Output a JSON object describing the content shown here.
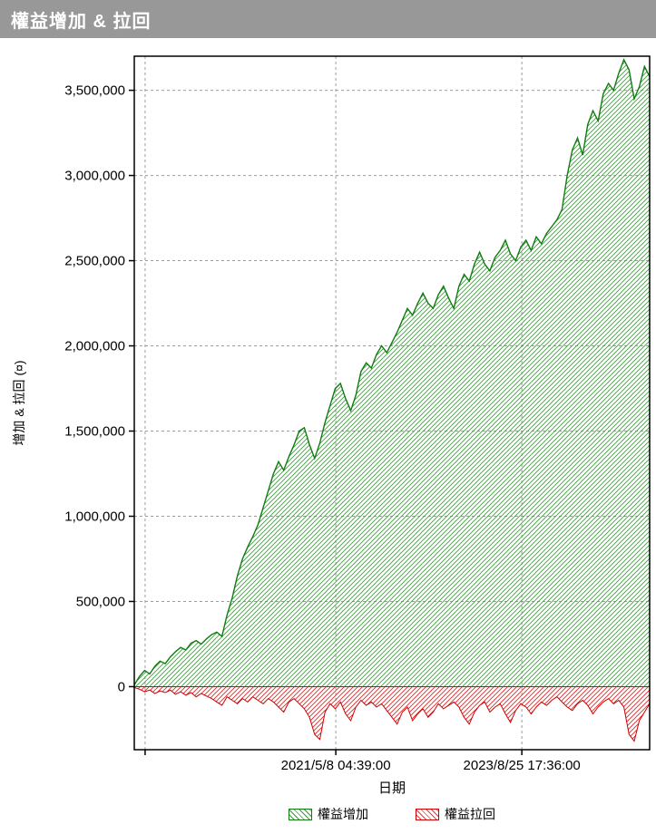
{
  "header": {
    "title": "權益增加 & 拉回"
  },
  "chart_data": {
    "type": "area",
    "title": "權益增加 & 拉回",
    "xlabel": "日期",
    "ylabel": "增加 & 拉回 (¤)",
    "grid": true,
    "legend_position": "bottom",
    "ylim": [
      -370000,
      3700000
    ],
    "y_ticks": [
      0,
      500000,
      1000000,
      1500000,
      2000000,
      2500000,
      3000000,
      3500000
    ],
    "x_ticks": [
      {
        "label": "2021/5/8 04:39:00",
        "pos": 0.391
      },
      {
        "label": "2023/8/25 17:36:00",
        "pos": 0.752
      }
    ],
    "x_gridlines": [
      0.021,
      0.391,
      0.752
    ],
    "x_spacing": "uniform",
    "colors": {
      "gain_line": "#107C10",
      "gain_hatch": "#3a9a3a",
      "drawdown_line": "#d00000",
      "drawdown_hatch": "#e02020",
      "gridline": "#9c9c9c"
    },
    "series": [
      {
        "name": "權益增加",
        "color": "#107C10",
        "values": [
          10000,
          60000,
          95000,
          75000,
          120000,
          150000,
          135000,
          175000,
          205000,
          230000,
          215000,
          255000,
          270000,
          250000,
          280000,
          305000,
          320000,
          295000,
          420000,
          520000,
          650000,
          750000,
          820000,
          880000,
          950000,
          1050000,
          1150000,
          1250000,
          1320000,
          1270000,
          1350000,
          1420000,
          1500000,
          1520000,
          1420000,
          1340000,
          1430000,
          1550000,
          1650000,
          1750000,
          1780000,
          1690000,
          1620000,
          1710000,
          1850000,
          1900000,
          1870000,
          1950000,
          2000000,
          1960000,
          2020000,
          2080000,
          2150000,
          2220000,
          2180000,
          2250000,
          2310000,
          2250000,
          2220000,
          2300000,
          2350000,
          2280000,
          2220000,
          2350000,
          2420000,
          2380000,
          2480000,
          2550000,
          2480000,
          2440000,
          2520000,
          2560000,
          2620000,
          2540000,
          2500000,
          2580000,
          2620000,
          2560000,
          2640000,
          2600000,
          2660000,
          2700000,
          2740000,
          2800000,
          3000000,
          3150000,
          3220000,
          3120000,
          3300000,
          3380000,
          3320000,
          3480000,
          3540000,
          3500000,
          3600000,
          3680000,
          3620000,
          3450000,
          3520000,
          3640000,
          3580000
        ]
      },
      {
        "name": "權益拉回",
        "color": "#d00000",
        "values": [
          -5000,
          -15000,
          -30000,
          -20000,
          -40000,
          -25000,
          -35000,
          -20000,
          -45000,
          -30000,
          -50000,
          -35000,
          -60000,
          -40000,
          -55000,
          -70000,
          -90000,
          -110000,
          -60000,
          -80000,
          -100000,
          -70000,
          -90000,
          -60000,
          -80000,
          -100000,
          -70000,
          -90000,
          -120000,
          -150000,
          -90000,
          -70000,
          -100000,
          -130000,
          -180000,
          -280000,
          -310000,
          -150000,
          -100000,
          -130000,
          -90000,
          -160000,
          -200000,
          -120000,
          -80000,
          -110000,
          -90000,
          -120000,
          -100000,
          -140000,
          -180000,
          -220000,
          -150000,
          -120000,
          -200000,
          -160000,
          -130000,
          -180000,
          -150000,
          -100000,
          -130000,
          -110000,
          -90000,
          -120000,
          -180000,
          -220000,
          -150000,
          -110000,
          -90000,
          -150000,
          -120000,
          -100000,
          -160000,
          -210000,
          -140000,
          -100000,
          -120000,
          -160000,
          -120000,
          -90000,
          -110000,
          -80000,
          -60000,
          -90000,
          -120000,
          -140000,
          -100000,
          -80000,
          -110000,
          -160000,
          -120000,
          -90000,
          -70000,
          -100000,
          -80000,
          -120000,
          -280000,
          -320000,
          -200000,
          -150000,
          -100000
        ]
      }
    ]
  }
}
